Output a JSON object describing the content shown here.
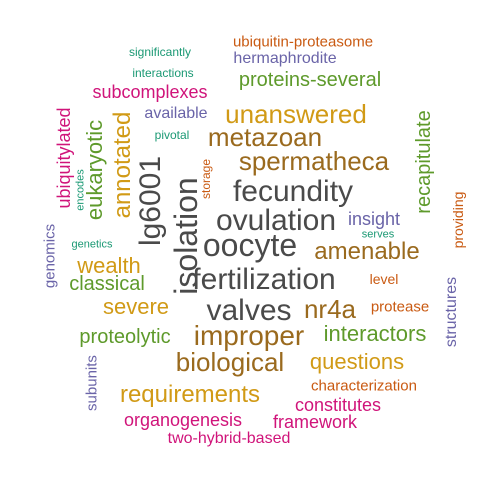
{
  "palette": {
    "gray": "#4a4a4a",
    "brown": "#9a6a1e",
    "gold": "#d19a16",
    "green": "#5e9a2b",
    "teal": "#1b9974",
    "orange": "#c95a12",
    "purple": "#6a64a8",
    "magenta": "#d0147a"
  },
  "words": [
    {
      "text": "ubiquitin-proteasome",
      "color": "orange"
    },
    {
      "text": "significantly",
      "color": "teal"
    },
    {
      "text": "hermaphrodite",
      "color": "purple"
    },
    {
      "text": "interactions",
      "color": "teal"
    },
    {
      "text": "proteins-several",
      "color": "green"
    },
    {
      "text": "subcomplexes",
      "color": "magenta"
    },
    {
      "text": "available",
      "color": "purple"
    },
    {
      "text": "unanswered",
      "color": "gold"
    },
    {
      "text": "pivotal",
      "color": "teal"
    },
    {
      "text": "metazoan",
      "color": "brown"
    },
    {
      "text": "spermatheca",
      "color": "brown"
    },
    {
      "text": "ubiquitylated",
      "color": "magenta"
    },
    {
      "text": "eukaryotic",
      "color": "green"
    },
    {
      "text": "annotated",
      "color": "gold"
    },
    {
      "text": "encodes",
      "color": "teal"
    },
    {
      "text": "lg6001",
      "color": "gray"
    },
    {
      "text": "storage",
      "color": "orange"
    },
    {
      "text": "isolation",
      "color": "gray"
    },
    {
      "text": "fecundity",
      "color": "gray"
    },
    {
      "text": "recapitulate",
      "color": "green"
    },
    {
      "text": "ovulation",
      "color": "gray"
    },
    {
      "text": "insight",
      "color": "purple"
    },
    {
      "text": "providing",
      "color": "orange"
    },
    {
      "text": "genomics",
      "color": "purple"
    },
    {
      "text": "genetics",
      "color": "teal"
    },
    {
      "text": "oocyte",
      "color": "gray"
    },
    {
      "text": "serves",
      "color": "teal"
    },
    {
      "text": "amenable",
      "color": "brown"
    },
    {
      "text": "wealth",
      "color": "gold"
    },
    {
      "text": "fertilization",
      "color": "gray"
    },
    {
      "text": "level",
      "color": "orange"
    },
    {
      "text": "classical",
      "color": "green"
    },
    {
      "text": "structures",
      "color": "purple"
    },
    {
      "text": "severe",
      "color": "gold"
    },
    {
      "text": "valves",
      "color": "gray"
    },
    {
      "text": "nr4a",
      "color": "brown"
    },
    {
      "text": "protease",
      "color": "orange"
    },
    {
      "text": "proteolytic",
      "color": "green"
    },
    {
      "text": "improper",
      "color": "brown"
    },
    {
      "text": "interactors",
      "color": "green"
    },
    {
      "text": "subunits",
      "color": "purple"
    },
    {
      "text": "biological",
      "color": "brown"
    },
    {
      "text": "questions",
      "color": "gold"
    },
    {
      "text": "characterization",
      "color": "orange"
    },
    {
      "text": "requirements",
      "color": "gold"
    },
    {
      "text": "constitutes",
      "color": "magenta"
    },
    {
      "text": "organogenesis",
      "color": "magenta"
    },
    {
      "text": "framework",
      "color": "magenta"
    },
    {
      "text": "two-hybrid-based",
      "color": "magenta"
    }
  ]
}
